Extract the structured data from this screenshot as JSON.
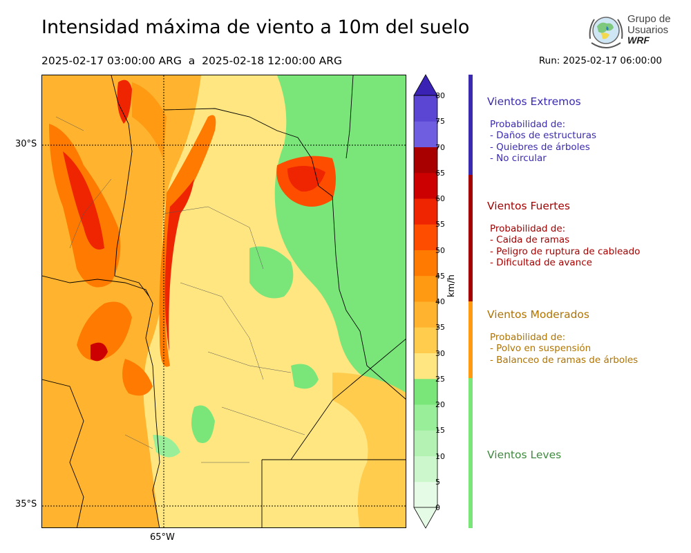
{
  "title": "Intensidad máxima de viento a 10m del suelo",
  "period": "2025-02-17 03:00:00 ARG  a  2025-02-18 12:00:00 ARG",
  "run": "Run: 2025-02-17 06:00:00",
  "logo": {
    "line1": "Grupo de",
    "line2": "Usuarios",
    "line3": "WRF"
  },
  "map": {
    "lat_labels": [
      "30°S",
      "35°S"
    ],
    "lon_labels": [
      "65°W"
    ]
  },
  "colorbar": {
    "unit": "km/h",
    "ticks": [
      "0",
      "5",
      "10",
      "15",
      "20",
      "25",
      "30",
      "35",
      "40",
      "45",
      "50",
      "55",
      "60",
      "65",
      "70",
      "75",
      "80"
    ],
    "colors": [
      "#e6fbe6",
      "#ccf7cc",
      "#b3f2b3",
      "#99ee99",
      "#7ae67a",
      "#ffe680",
      "#ffcc4d",
      "#ffb32e",
      "#ff9a12",
      "#ff7a00",
      "#ff4d00",
      "#ef2400",
      "#cc0000",
      "#a80000",
      "#6f5ee0",
      "#5a46d2",
      "#4a34c4",
      "#3a22b4"
    ]
  },
  "categories": [
    {
      "title": "Vientos Extremos",
      "color": "#3a2ab0",
      "lines": [
        "Probabilidad de:",
        "- Daños de estructuras",
        "- Quiebres de árboles",
        "- No circular"
      ]
    },
    {
      "title": "Vientos Fuertes",
      "color": "#a50000",
      "lines": [
        "Probabilidad de:",
        "- Caida de ramas",
        "- Peligro de ruptura de cableado",
        "- Dificultad de avance"
      ]
    },
    {
      "title": "Vientos Moderados",
      "color": "#b07300",
      "lines": [
        "Probabilidad de:",
        "- Polvo en suspensión",
        "- Balanceo de ramas de árboles"
      ]
    },
    {
      "title": "Vientos Leves",
      "color": "#3e8a3e",
      "lines": []
    }
  ],
  "strip_colors": [
    "#3a2ab0",
    "#a50000",
    "#ff9a12",
    "#7ae67a"
  ]
}
